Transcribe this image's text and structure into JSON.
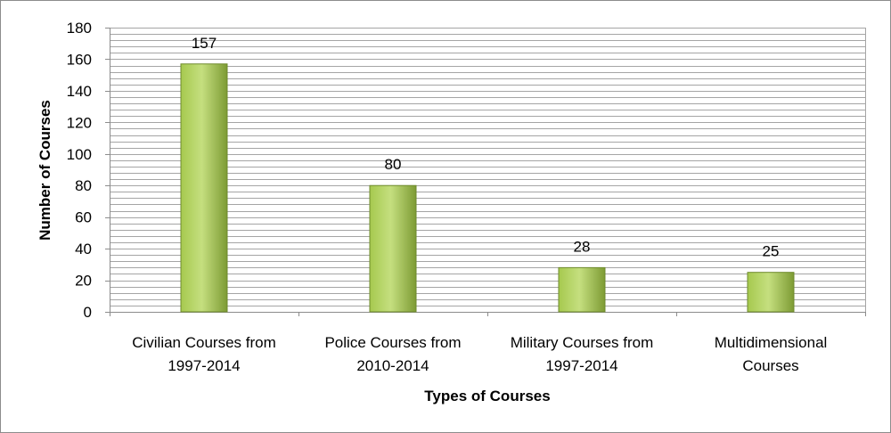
{
  "chart_data": {
    "type": "bar",
    "title": "",
    "xlabel": "Types of Courses",
    "ylabel": "Number of Courses",
    "ylim": [
      0,
      180
    ],
    "ytick_step": 20,
    "minor_grid_step": 4,
    "grid": true,
    "legend": "none",
    "categories": [
      [
        "Civilian Courses from",
        "1997-2014"
      ],
      [
        "Police Courses from",
        "2010-2014"
      ],
      [
        "Military Courses from",
        "1997-2014"
      ],
      [
        "Multidimensional",
        "Courses"
      ]
    ],
    "values": [
      157,
      80,
      28,
      25
    ],
    "data_labels": [
      "157",
      "80",
      "28",
      "25"
    ],
    "colors": {
      "bar_light": "#c5df7f",
      "bar_mid": "#a6c94f",
      "bar_dark": "#7d9b34",
      "bar_edge": "#6e8a2c",
      "grid": "#a5a5a5",
      "axis": "#8c8c8c"
    }
  }
}
